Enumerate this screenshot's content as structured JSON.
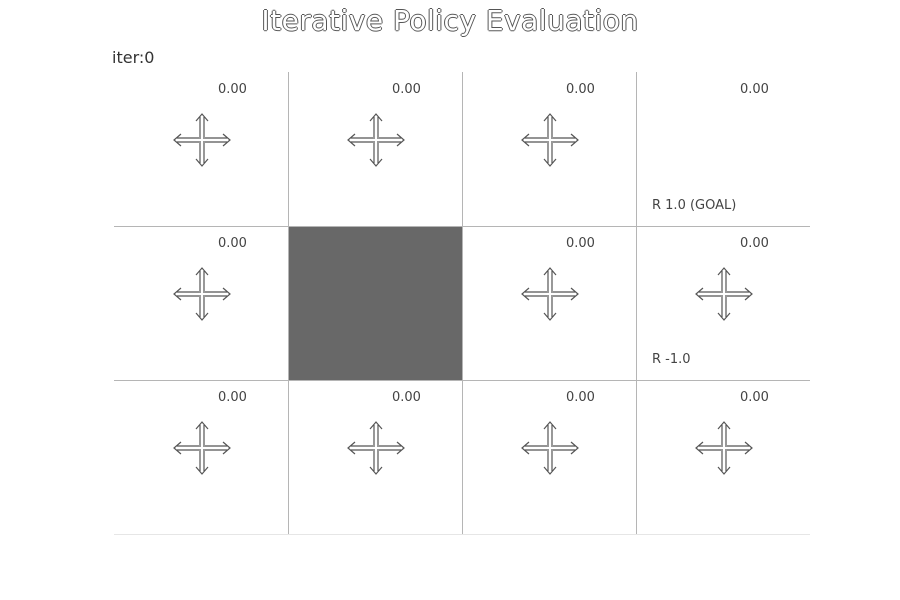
{
  "title": "Iterative Policy Evaluation",
  "iteration_label": "iter:0",
  "colors": {
    "wall": "#686868",
    "grid_line": "#b5b5b5",
    "text": "#444444"
  },
  "grid": {
    "rows": 3,
    "cols": 4,
    "cells": [
      [
        {
          "value": "0.00",
          "arrows": true,
          "reward": ""
        },
        {
          "value": "0.00",
          "arrows": true,
          "reward": ""
        },
        {
          "value": "0.00",
          "arrows": true,
          "reward": ""
        },
        {
          "value": "0.00",
          "arrows": false,
          "reward": "R 1.0 (GOAL)"
        }
      ],
      [
        {
          "value": "0.00",
          "arrows": true,
          "reward": ""
        },
        {
          "wall": true
        },
        {
          "value": "0.00",
          "arrows": true,
          "reward": ""
        },
        {
          "value": "0.00",
          "arrows": true,
          "reward": "R -1.0"
        }
      ],
      [
        {
          "value": "0.00",
          "arrows": true,
          "reward": ""
        },
        {
          "value": "0.00",
          "arrows": true,
          "reward": ""
        },
        {
          "value": "0.00",
          "arrows": true,
          "reward": ""
        },
        {
          "value": "0.00",
          "arrows": true,
          "reward": ""
        }
      ]
    ]
  }
}
